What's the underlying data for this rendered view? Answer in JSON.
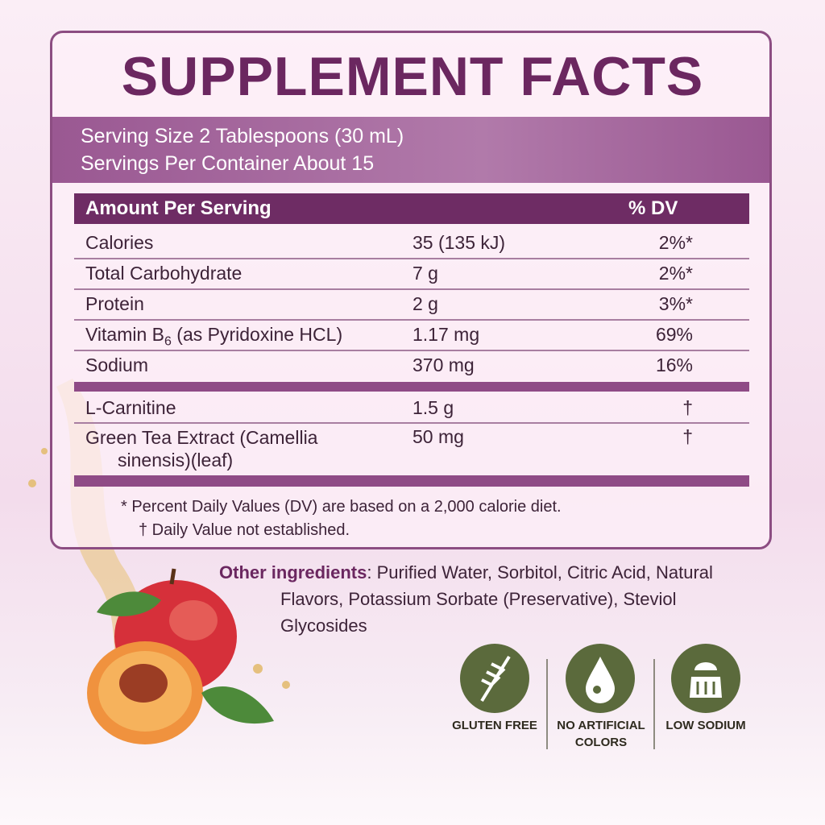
{
  "title": "SUPPLEMENT FACTS",
  "serving": [
    "Serving Size 2 Tablespoons (30 mL)",
    "Servings Per Container About 15"
  ],
  "table": {
    "header": [
      "Amount Per Serving",
      "% DV"
    ],
    "rows": [
      {
        "name": "Calories",
        "amount": "35 (135 kJ)",
        "dv": "2%*"
      },
      {
        "name": "Total Carbohydrate",
        "amount": "7 g",
        "dv": "2%*"
      },
      {
        "name": "Protein",
        "amount": "2 g",
        "dv": "3%*"
      },
      {
        "name": "Vitamin B",
        "subscript": "6",
        "name_suffix": " (as Pyridoxine HCL)",
        "amount": "1.17 mg",
        "dv": "69%"
      },
      {
        "name": "Sodium",
        "amount": "370 mg",
        "dv": "16%"
      }
    ],
    "other_rows": [
      {
        "name": "L-Carnitine",
        "amount": "1.5 g",
        "dv": "†"
      },
      {
        "name": "Green Tea Extract (Camellia sinensis)(leaf)",
        "amount": "50 mg",
        "dv": "†"
      }
    ]
  },
  "footnotes": [
    "* Percent Daily Values (DV) are based on a 2,000 calorie diet.",
    "† Daily Value not established."
  ],
  "other_ingredients": {
    "label": "Other ingredients",
    "text": ": Purified Water, Sorbitol, Citric Acid, Natural Flavors, Potassium Sorbate (Preservative), Steviol Glycosides"
  },
  "badges": [
    "GLUTEN FREE",
    "NO ARTIFICIAL COLORS",
    "LOW SODIUM"
  ]
}
